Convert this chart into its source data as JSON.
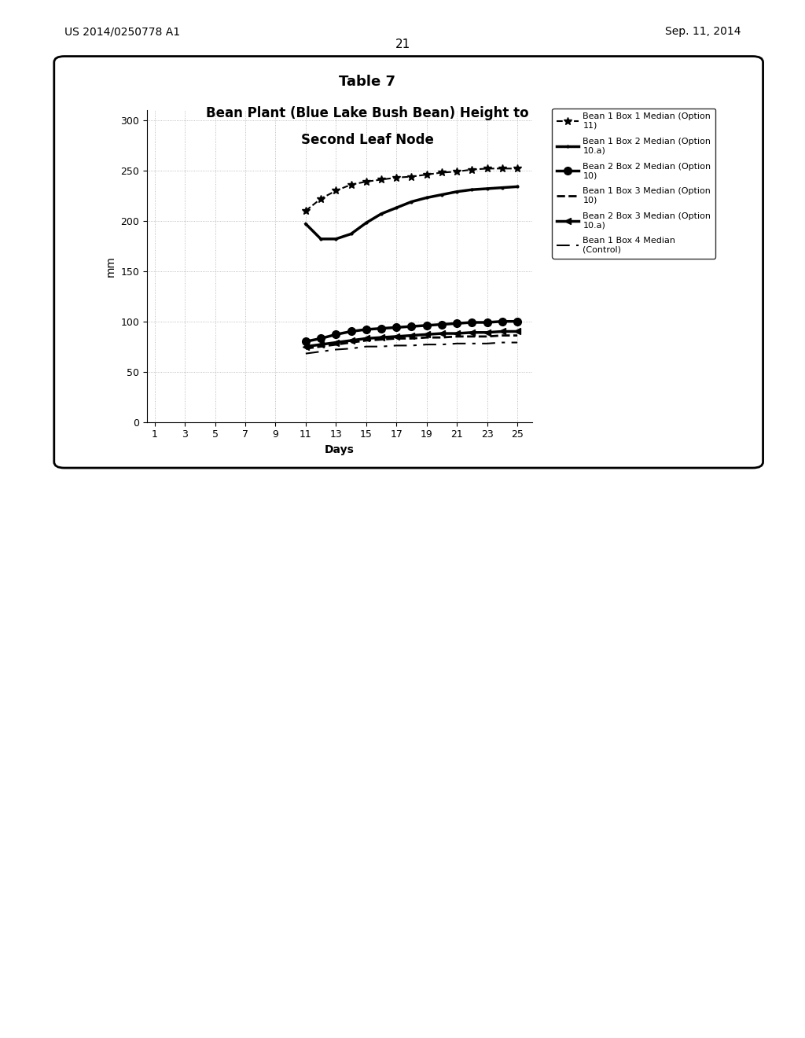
{
  "title_line1": "Table 7",
  "title_line2": "Bean Plant (Blue Lake Bush Bean) Height to",
  "title_line3": "Second Leaf Node",
  "xlabel": "Days",
  "ylabel": "mm",
  "xlim": [
    0.5,
    26
  ],
  "ylim": [
    0,
    310
  ],
  "xticks": [
    1,
    3,
    5,
    7,
    9,
    11,
    13,
    15,
    17,
    19,
    21,
    23,
    25
  ],
  "yticks": [
    0,
    50,
    100,
    150,
    200,
    250,
    300
  ],
  "header_left": "US 2014/0250778 A1",
  "header_right": "Sep. 11, 2014",
  "page_number": "21",
  "series": [
    {
      "label": "Bean 1 Box 1 Median (Option\n11)",
      "days": [
        11,
        12,
        13,
        14,
        15,
        16,
        17,
        18,
        19,
        20,
        21,
        22,
        23,
        24,
        25
      ],
      "values": [
        210,
        222,
        230,
        236,
        239,
        241,
        243,
        244,
        246,
        248,
        249,
        251,
        252,
        252,
        252
      ],
      "linestyle": "--",
      "marker": "*",
      "markersize": 7,
      "linewidth": 1.5,
      "color": "#000000",
      "markerfacecolor": "#000000"
    },
    {
      "label": "Bean 1 Box 2 Median (Option\n10.a)",
      "days": [
        11,
        12,
        13,
        14,
        15,
        16,
        17,
        18,
        19,
        20,
        21,
        22,
        23,
        24,
        25
      ],
      "values": [
        197,
        182,
        182,
        187,
        198,
        207,
        213,
        219,
        223,
        226,
        229,
        231,
        232,
        233,
        234
      ],
      "linestyle": "-",
      "marker": ".",
      "markersize": 4,
      "linewidth": 2.5,
      "color": "#000000",
      "markerfacecolor": "#000000"
    },
    {
      "label": "Bean 2 Box 2 Median (Option\n10)",
      "days": [
        11,
        12,
        13,
        14,
        15,
        16,
        17,
        18,
        19,
        20,
        21,
        22,
        23,
        24,
        25
      ],
      "values": [
        80,
        83,
        87,
        90,
        92,
        93,
        94,
        95,
        96,
        97,
        98,
        99,
        99,
        100,
        100
      ],
      "linestyle": "-",
      "marker": "o",
      "markersize": 7,
      "linewidth": 2.5,
      "color": "#000000",
      "markerfacecolor": "#000000"
    },
    {
      "label": "Bean 1 Box 3 Median (Option\n10)",
      "days": [
        11,
        12,
        13,
        14,
        15,
        16,
        17,
        18,
        19,
        20,
        21,
        22,
        23,
        24,
        25
      ],
      "values": [
        73,
        75,
        77,
        79,
        81,
        82,
        83,
        83,
        84,
        84,
        85,
        85,
        85,
        86,
        86
      ],
      "linestyle": "--",
      "marker": "",
      "markersize": 0,
      "linewidth": 2.0,
      "color": "#000000",
      "markerfacecolor": "#000000"
    },
    {
      "label": "Bean 2 Box 3 Median (Option\n10.a)",
      "days": [
        11,
        12,
        13,
        14,
        15,
        16,
        17,
        18,
        19,
        20,
        21,
        22,
        23,
        24,
        25
      ],
      "values": [
        75,
        77,
        79,
        81,
        83,
        84,
        85,
        86,
        87,
        88,
        88,
        89,
        89,
        90,
        90
      ],
      "linestyle": "-",
      "marker": "<",
      "markersize": 6,
      "linewidth": 2.5,
      "color": "#000000",
      "markerfacecolor": "#000000"
    },
    {
      "label": "Bean 1 Box 4 Median\n(Control)",
      "days": [
        11,
        12,
        13,
        14,
        15,
        16,
        17,
        18,
        19,
        20,
        21,
        22,
        23,
        24,
        25
      ],
      "values": [
        68,
        70,
        72,
        73,
        75,
        75,
        76,
        76,
        77,
        77,
        78,
        78,
        78,
        79,
        79
      ],
      "linestyle": "--",
      "marker": "",
      "markersize": 0,
      "linewidth": 1.5,
      "color": "#000000",
      "markerfacecolor": "#000000",
      "dash_style": [
        8,
        4,
        2,
        4
      ]
    }
  ],
  "background_color": "#ffffff",
  "grid_color": "#999999",
  "figure_bg": "#ffffff"
}
